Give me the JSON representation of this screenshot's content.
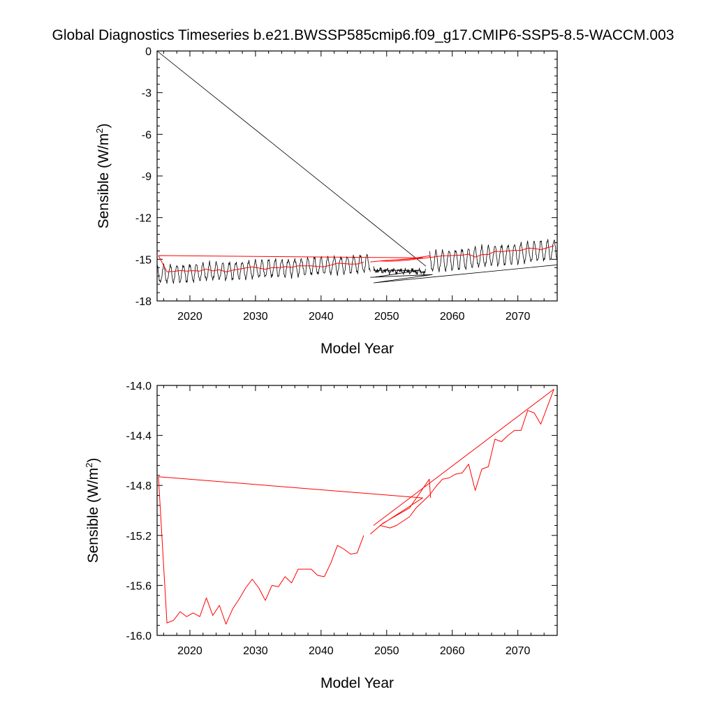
{
  "title": "Global Diagnostics Timeseries b.e21.BWSSP585cmip6.f09_g17.CMIP6-SSP5-8.5-WACCM.003",
  "chart_data": [
    {
      "type": "line",
      "xlabel": "Model Year",
      "ylabel_main": "Sensible (W/m",
      "ylabel_sup": "2",
      "ylabel_close": ")",
      "xlim": [
        2015,
        2076
      ],
      "ylim": [
        -18,
        0
      ],
      "x_ticks": [
        2020,
        2030,
        2040,
        2050,
        2060,
        2070
      ],
      "x_tick_labels": [
        "2020",
        "2030",
        "2040",
        "2050",
        "2060",
        "2070"
      ],
      "y_ticks": [
        0,
        -3,
        -6,
        -9,
        -12,
        -15,
        -18
      ],
      "y_tick_labels": [
        "0",
        "-3",
        "-6",
        "-9",
        "-12",
        "-15",
        "-18"
      ],
      "series": [
        {
          "color": "#000000",
          "style": "monthly",
          "segments": [
            {
              "x": [
                2015.0,
                2056.0
              ],
              "y": [
                0.0,
                -15.5
              ]
            },
            {
              "start": 2056.0,
              "end": 2048.0,
              "mean": [
                -15.9,
                -15.8
              ],
              "amp": 0.1
            },
            {
              "x": [
                2048.0,
                2055.0
              ],
              "y": [
                -15.8,
                -15.8
              ]
            },
            {
              "x": [
                2055.0,
                2048.0
              ],
              "y": [
                -15.8,
                -16.3
              ]
            },
            {
              "start": 2015.0,
              "end": 2047.5,
              "mean": [
                -16.1,
                -15.3
              ],
              "amp": 0.6,
              "phase": 0
            },
            {
              "x": [
                2047.5,
                2057.0
              ],
              "y": [
                -16.3,
                -16.1
              ]
            },
            {
              "x": [
                2057.0,
                2048.0
              ],
              "y": [
                -16.1,
                -16.7
              ]
            },
            {
              "x": [
                2048.0,
                2076.0
              ],
              "y": [
                -16.7,
                -15.4
              ]
            },
            {
              "start": 2056.5,
              "end": 2076.0,
              "mean": [
                -15.2,
                -14.3
              ],
              "amp": 0.7,
              "phase": 0.5
            }
          ]
        },
        {
          "color": "#ff0000",
          "style": "annual",
          "points": [
            [
              2015.2,
              -14.73
            ],
            [
              2016.5,
              -15.9
            ],
            [
              2017.5,
              -15.88
            ],
            [
              2018.5,
              -15.81
            ],
            [
              2019.5,
              -15.85
            ],
            [
              2020.5,
              -15.82
            ],
            [
              2021.5,
              -15.85
            ],
            [
              2022.5,
              -15.7
            ],
            [
              2023.5,
              -15.84
            ],
            [
              2024.5,
              -15.76
            ],
            [
              2025.5,
              -15.91
            ],
            [
              2026.5,
              -15.79
            ],
            [
              2027.5,
              -15.71
            ],
            [
              2028.5,
              -15.62
            ],
            [
              2029.5,
              -15.55
            ],
            [
              2030.5,
              -15.62
            ],
            [
              2031.5,
              -15.72
            ],
            [
              2032.5,
              -15.6
            ],
            [
              2033.5,
              -15.61
            ],
            [
              2034.5,
              -15.53
            ],
            [
              2035.5,
              -15.58
            ],
            [
              2036.5,
              -15.47
            ],
            [
              2037.5,
              -15.47
            ],
            [
              2038.5,
              -15.47
            ],
            [
              2039.5,
              -15.52
            ],
            [
              2040.5,
              -15.53
            ],
            [
              2041.5,
              -15.42
            ],
            [
              2042.5,
              -15.28
            ],
            [
              2043.5,
              -15.31
            ],
            [
              2044.5,
              -15.35
            ],
            [
              2045.5,
              -15.34
            ],
            [
              2046.5,
              -15.2
            ],
            null,
            [
              2047.5,
              -15.19
            ],
            [
              2049.5,
              -15.1
            ],
            [
              2051.5,
              -15.04
            ],
            [
              2053.5,
              -14.98
            ],
            [
              2056.5,
              -14.75
            ],
            [
              2056.7,
              -14.9
            ],
            null,
            [
              2015.2,
              -14.73
            ],
            [
              2055.5,
              -14.9
            ],
            [
              2049.0,
              -15.12
            ],
            [
              2050.5,
              -15.14
            ],
            [
              2051.5,
              -15.12
            ],
            [
              2053.5,
              -15.05
            ],
            [
              2054.5,
              -14.98
            ],
            [
              2056.5,
              -14.88
            ],
            [
              2057.5,
              -14.81
            ],
            [
              2058.5,
              -14.75
            ],
            [
              2059.5,
              -14.74
            ],
            [
              2060.5,
              -14.71
            ],
            [
              2061.5,
              -14.7
            ],
            [
              2062.5,
              -14.63
            ],
            [
              2063.5,
              -14.84
            ],
            [
              2064.5,
              -14.67
            ],
            [
              2065.5,
              -14.65
            ],
            [
              2066.5,
              -14.43
            ],
            [
              2067.5,
              -14.45
            ],
            [
              2068.5,
              -14.4
            ],
            [
              2069.5,
              -14.36
            ],
            [
              2070.5,
              -14.36
            ],
            [
              2071.5,
              -14.2
            ],
            [
              2072.5,
              -14.22
            ],
            [
              2073.5,
              -14.31
            ],
            [
              2075.5,
              -14.03
            ]
          ]
        }
      ]
    },
    {
      "type": "line",
      "xlabel": "Model Year",
      "ylabel_main": "Sensible (W/m",
      "ylabel_sup": "2",
      "ylabel_close": ")",
      "xlim": [
        2015,
        2076
      ],
      "ylim": [
        -16,
        -14
      ],
      "x_ticks": [
        2020,
        2030,
        2040,
        2050,
        2060,
        2070
      ],
      "x_tick_labels": [
        "2020",
        "2030",
        "2040",
        "2050",
        "2060",
        "2070"
      ],
      "y_ticks": [
        -14.0,
        -14.4,
        -14.8,
        -15.2,
        -15.6,
        -16.0
      ],
      "y_tick_labels": [
        "-14.0",
        "-14.4",
        "-14.8",
        "-15.2",
        "-15.6",
        "-16.0"
      ],
      "series": [
        {
          "color": "#ff0000",
          "style": "annual",
          "points": [
            [
              2015.2,
              -14.73
            ],
            [
              2016.5,
              -15.9
            ],
            [
              2017.5,
              -15.88
            ],
            [
              2018.5,
              -15.81
            ],
            [
              2019.5,
              -15.85
            ],
            [
              2020.5,
              -15.82
            ],
            [
              2021.5,
              -15.85
            ],
            [
              2022.5,
              -15.7
            ],
            [
              2023.5,
              -15.84
            ],
            [
              2024.5,
              -15.76
            ],
            [
              2025.5,
              -15.91
            ],
            [
              2026.5,
              -15.79
            ],
            [
              2027.5,
              -15.71
            ],
            [
              2028.5,
              -15.62
            ],
            [
              2029.5,
              -15.55
            ],
            [
              2030.5,
              -15.62
            ],
            [
              2031.5,
              -15.72
            ],
            [
              2032.5,
              -15.6
            ],
            [
              2033.5,
              -15.61
            ],
            [
              2034.5,
              -15.53
            ],
            [
              2035.5,
              -15.58
            ],
            [
              2036.5,
              -15.47
            ],
            [
              2037.5,
              -15.47
            ],
            [
              2038.5,
              -15.47
            ],
            [
              2039.5,
              -15.52
            ],
            [
              2040.5,
              -15.53
            ],
            [
              2041.5,
              -15.42
            ],
            [
              2042.5,
              -15.28
            ],
            [
              2043.5,
              -15.31
            ],
            [
              2044.5,
              -15.35
            ],
            [
              2045.5,
              -15.34
            ],
            [
              2046.5,
              -15.2
            ],
            null,
            [
              2047.5,
              -15.19
            ],
            [
              2049.5,
              -15.1
            ],
            [
              2051.5,
              -15.04
            ],
            [
              2053.5,
              -14.98
            ],
            [
              2056.5,
              -14.75
            ],
            [
              2056.7,
              -14.9
            ],
            null,
            [
              2015.2,
              -14.73
            ],
            [
              2055.5,
              -14.9
            ],
            [
              2049.0,
              -15.12
            ],
            [
              2050.5,
              -15.14
            ],
            [
              2051.5,
              -15.12
            ],
            [
              2053.5,
              -15.05
            ],
            [
              2054.5,
              -14.98
            ],
            [
              2056.5,
              -14.88
            ],
            [
              2057.5,
              -14.81
            ],
            [
              2058.5,
              -14.75
            ],
            [
              2059.5,
              -14.74
            ],
            [
              2060.5,
              -14.71
            ],
            [
              2061.5,
              -14.7
            ],
            [
              2062.5,
              -14.63
            ],
            [
              2063.5,
              -14.84
            ],
            [
              2064.5,
              -14.67
            ],
            [
              2065.5,
              -14.65
            ],
            [
              2066.5,
              -14.43
            ],
            [
              2067.5,
              -14.45
            ],
            [
              2068.5,
              -14.4
            ],
            [
              2069.5,
              -14.36
            ],
            [
              2070.5,
              -14.36
            ],
            [
              2071.5,
              -14.2
            ],
            [
              2072.5,
              -14.22
            ],
            [
              2073.5,
              -14.31
            ],
            [
              2075.5,
              -14.03
            ]
          ]
        },
        {
          "color": "#ff0000",
          "style": "annual",
          "points": [
            [
              2048.0,
              -15.12
            ],
            [
              2075.5,
              -14.03
            ]
          ]
        }
      ]
    }
  ]
}
